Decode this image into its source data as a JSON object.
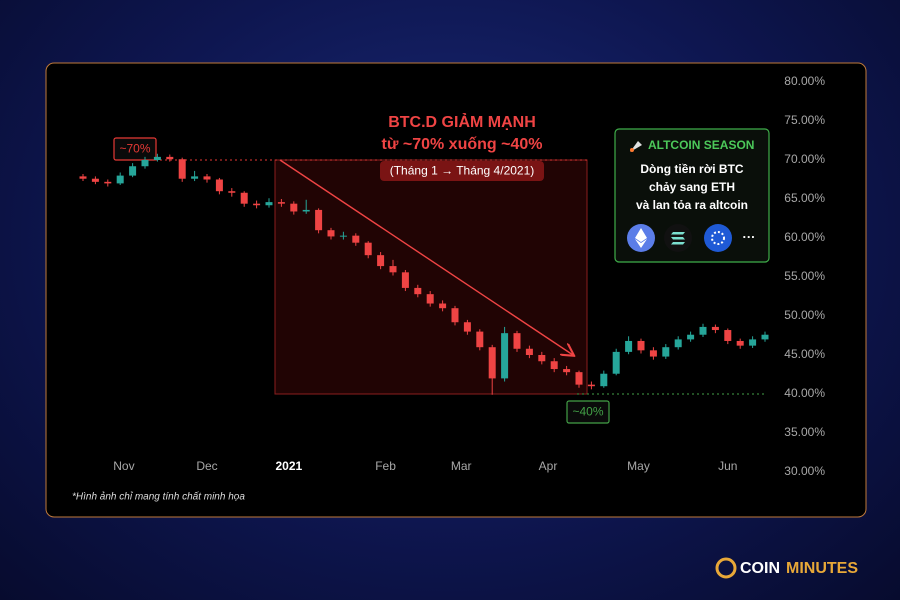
{
  "chart_data": {
    "type": "candlestick",
    "title": "BTC.D GIẢM MẠNH",
    "subtitle": "từ ~70% xuống ~40%",
    "period": "(Tháng 1 → Tháng 4/2021)",
    "up_color": "#26a69a",
    "down_color": "#ef4444",
    "open": [
      67.9,
      67.6,
      67.2,
      67.0,
      68.0,
      69.2,
      70.0,
      70.4,
      70.1,
      67.6,
      67.9,
      67.5,
      66.0,
      65.8,
      64.4,
      64.2,
      64.6,
      64.4,
      63.4,
      63.6,
      61.0,
      60.2,
      60.3,
      59.4,
      57.8,
      56.4,
      55.6,
      53.6,
      52.8,
      51.6,
      51.0,
      49.2,
      48.0,
      46.0,
      42.0,
      47.8,
      45.8,
      45.0,
      44.2,
      43.2,
      42.8,
      41.2,
      41.0,
      42.6,
      45.4,
      46.8,
      45.6,
      44.8,
      46.0,
      47.0,
      47.6,
      48.6,
      48.2,
      46.8,
      46.2,
      47.0
    ],
    "high": [
      68.2,
      67.9,
      67.5,
      68.4,
      69.6,
      70.4,
      70.8,
      70.7,
      70.3,
      68.6,
      68.2,
      67.7,
      66.4,
      66.0,
      64.8,
      65.1,
      65.0,
      64.7,
      64.9,
      63.8,
      61.3,
      60.8,
      60.6,
      59.6,
      58.2,
      57.2,
      55.9,
      54.0,
      53.2,
      52.0,
      51.3,
      49.5,
      48.3,
      46.3,
      48.6,
      48.1,
      46.2,
      45.4,
      44.6,
      43.6,
      43.0,
      41.6,
      43.0,
      45.8,
      47.4,
      47.1,
      46.0,
      46.4,
      47.4,
      48.0,
      49.0,
      48.9,
      48.4,
      47.1,
      47.4,
      48.0
    ],
    "low": [
      67.3,
      66.9,
      66.6,
      66.8,
      67.8,
      68.9,
      69.8,
      69.8,
      67.2,
      67.3,
      67.1,
      65.6,
      65.3,
      64.0,
      63.8,
      63.9,
      64.0,
      63.0,
      63.1,
      60.6,
      59.8,
      59.8,
      59.0,
      57.4,
      56.0,
      55.2,
      53.2,
      52.4,
      51.2,
      50.6,
      48.8,
      47.6,
      45.6,
      39.9,
      41.6,
      45.4,
      44.6,
      43.8,
      42.8,
      42.4,
      40.8,
      40.6,
      40.8,
      42.4,
      45.1,
      45.2,
      44.4,
      44.5,
      45.7,
      46.7,
      47.3,
      47.8,
      46.4,
      45.8,
      45.9,
      46.7
    ],
    "close": [
      67.6,
      67.2,
      67.0,
      68.0,
      69.2,
      70.0,
      70.4,
      70.1,
      67.6,
      67.9,
      67.5,
      66.0,
      65.8,
      64.4,
      64.2,
      64.6,
      64.4,
      63.4,
      63.6,
      61.0,
      60.2,
      60.3,
      59.4,
      57.8,
      56.4,
      55.6,
      53.6,
      52.8,
      51.6,
      51.0,
      49.2,
      48.0,
      46.0,
      42.0,
      47.8,
      45.8,
      45.0,
      44.2,
      43.2,
      42.8,
      41.2,
      41.0,
      42.6,
      45.4,
      46.8,
      45.6,
      44.8,
      46.0,
      47.0,
      47.6,
      48.6,
      48.2,
      46.8,
      46.2,
      47.0,
      47.6
    ],
    "xlim": [
      -0.5,
      55.5
    ],
    "xticks": [
      {
        "value": 3.3,
        "label": "Nov"
      },
      {
        "value": 10,
        "label": "Dec"
      },
      {
        "value": 16.6,
        "label": "2021"
      },
      {
        "value": 24.4,
        "label": "Feb"
      },
      {
        "value": 30.5,
        "label": "Mar"
      },
      {
        "value": 37.5,
        "label": "Apr"
      },
      {
        "value": 44.8,
        "label": "May"
      },
      {
        "value": 52,
        "label": "Jun"
      }
    ],
    "ylim": [
      30,
      80
    ],
    "yticks": [
      {
        "value": 80,
        "label": "80.00%"
      },
      {
        "value": 75,
        "label": "75.00%"
      },
      {
        "value": 70,
        "label": "70.00%"
      },
      {
        "value": 65,
        "label": "65.00%"
      },
      {
        "value": 60,
        "label": "60.00%"
      },
      {
        "value": 55,
        "label": "55.00%"
      },
      {
        "value": 50,
        "label": "50.00%"
      },
      {
        "value": 45,
        "label": "45.00%"
      },
      {
        "value": 40,
        "label": "40.00%"
      },
      {
        "value": 35,
        "label": "35.00%"
      },
      {
        "value": 30,
        "label": "30.00%"
      }
    ],
    "highlight": {
      "top": 70,
      "bottom": 40
    },
    "annotations": [
      {
        "label": "~70%",
        "value": 70,
        "color": "#e53935"
      },
      {
        "label": "~40%",
        "value": 40,
        "color": "#43a047"
      }
    ]
  },
  "callout": {
    "title": "ALTCOIN SEASON",
    "lines": [
      "Dòng tiền rời BTC",
      "chảy sang ETH",
      "và lan tỏa ra altcoin"
    ],
    "more": "···"
  },
  "footnote": "*Hình ảnh chỉ mang tính chất minh họa",
  "brand": {
    "first": "COIN",
    "second": "MINUTES"
  }
}
